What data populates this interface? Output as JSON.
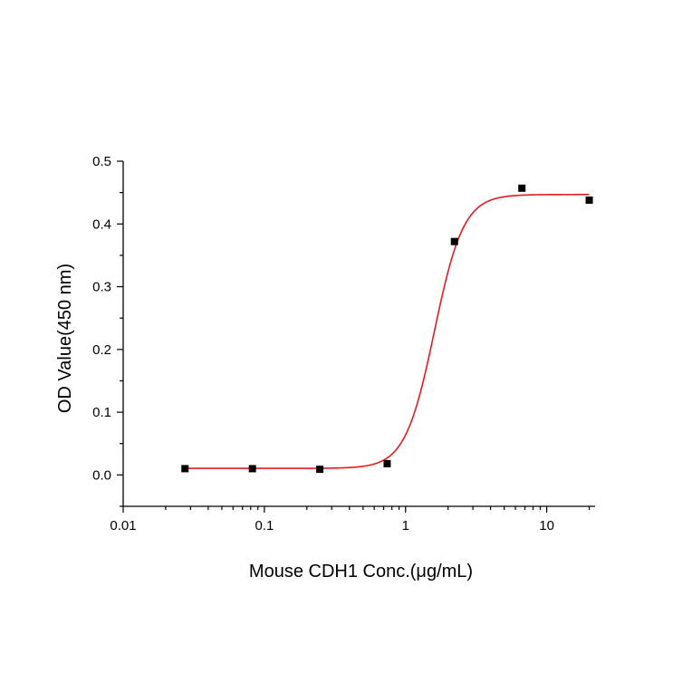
{
  "chart_data": {
    "type": "scatter",
    "title": "",
    "xlabel": "Mouse CDH1 Conc.(μg/mL)",
    "ylabel": "OD Value(450 nm)",
    "x_scale": "log",
    "xlim": [
      0.01,
      22
    ],
    "ylim": [
      -0.05,
      0.5
    ],
    "x_ticks": [
      {
        "value": 0.01,
        "label": "0.01"
      },
      {
        "value": 0.1,
        "label": "0.1"
      },
      {
        "value": 1,
        "label": "1"
      },
      {
        "value": 10,
        "label": "10"
      }
    ],
    "y_ticks": [
      {
        "value": 0.0,
        "label": "0.0"
      },
      {
        "value": 0.1,
        "label": "0.1"
      },
      {
        "value": 0.2,
        "label": "0.2"
      },
      {
        "value": 0.3,
        "label": "0.3"
      },
      {
        "value": 0.4,
        "label": "0.4"
      },
      {
        "value": 0.5,
        "label": "0.5"
      }
    ],
    "grid": false,
    "series": [
      {
        "kind": "points",
        "color": "#000000",
        "marker": "square",
        "x": [
          0.0274,
          0.0823,
          0.247,
          0.741,
          2.22,
          6.67,
          20
        ],
        "y": [
          0.01,
          0.01,
          0.009,
          0.018,
          0.372,
          0.457,
          0.438
        ]
      },
      {
        "kind": "fit-curve",
        "color": "#e8191e",
        "model": "4PL",
        "bottom": 0.0105,
        "top": 0.447,
        "ec50": 1.6,
        "hill": 4.2,
        "x_range": [
          0.0274,
          20
        ]
      }
    ]
  }
}
